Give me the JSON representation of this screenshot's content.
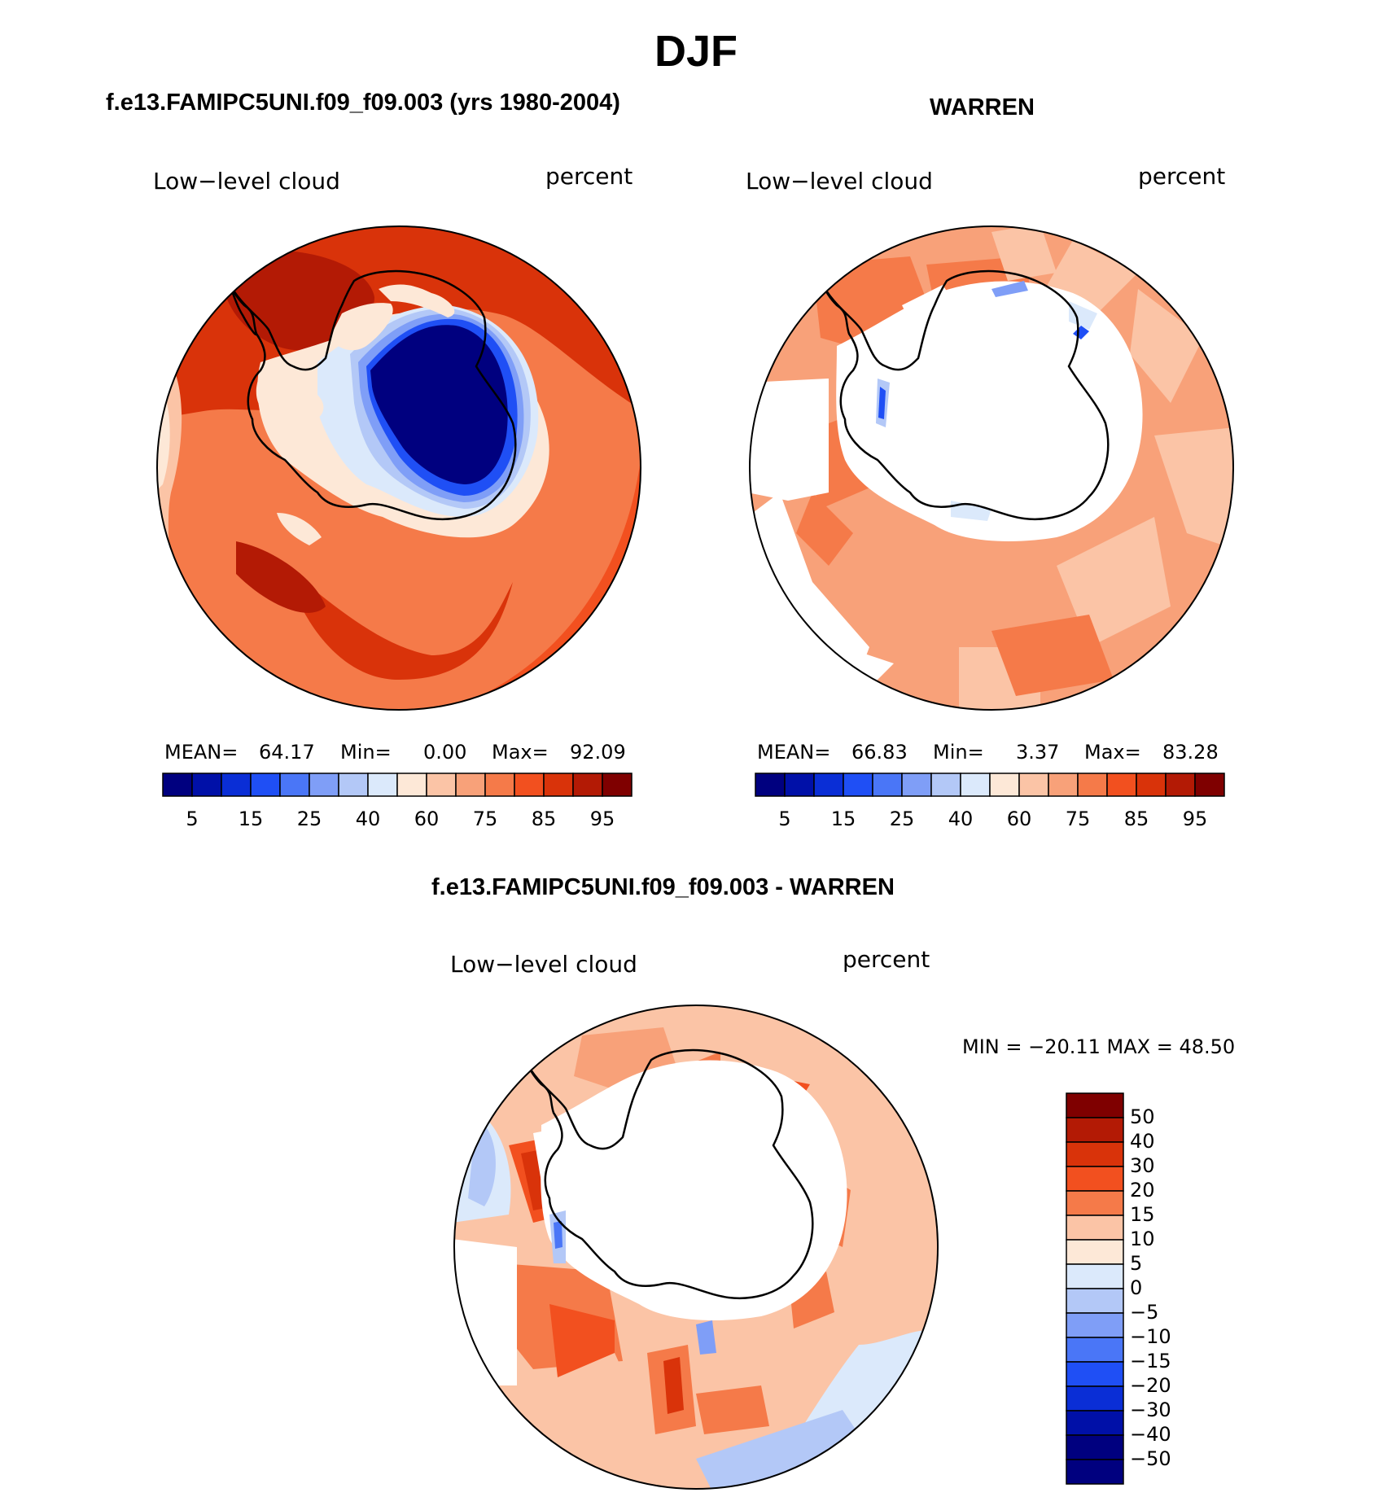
{
  "title": "DJF",
  "panels": [
    {
      "id": "model",
      "title": "f.e13.FAMIPC5UNI.f09_f09.003 (yrs 1980-2004)",
      "left_label": "Low−level cloud",
      "right_label": "percent",
      "stats": {
        "mean_label": "MEAN=",
        "mean": "64.17",
        "min_label": "Min=",
        "min": "0.00",
        "max_label": "Max=",
        "max": "92.09"
      }
    },
    {
      "id": "obs",
      "title": "WARREN",
      "left_label": "Low−level cloud",
      "right_label": "percent",
      "stats": {
        "mean_label": "MEAN=",
        "mean": "66.83",
        "min_label": "Min=",
        "min": "3.37",
        "max_label": "Max=",
        "max": "83.28"
      }
    },
    {
      "id": "diff",
      "title": "f.e13.FAMIPC5UNI.f09_f09.003 - WARREN",
      "left_label": "Low−level cloud",
      "right_label": "percent",
      "stats": {
        "text": "MIN = −20.11 MAX =   48.50"
      }
    }
  ],
  "colorbar_abs": {
    "colors": [
      "#00007f",
      "#0010a8",
      "#0a2ed6",
      "#1f4ff5",
      "#4a76f7",
      "#7f9ef7",
      "#b3c8f7",
      "#dbe9fb",
      "#fde8d7",
      "#fbc4a6",
      "#f8a179",
      "#f57a49",
      "#f2501f",
      "#d9330a",
      "#b31a05",
      "#7f0000"
    ],
    "tick_labels": [
      "5",
      "15",
      "25",
      "40",
      "60",
      "75",
      "85",
      "95"
    ]
  },
  "colorbar_diff": {
    "colors": [
      "#7f0000",
      "#b31a05",
      "#d9330a",
      "#f2501f",
      "#f57a49",
      "#fbc4a6",
      "#fde8d7",
      "#dbe9fb",
      "#b3c8f7",
      "#7f9ef7",
      "#4a76f7",
      "#1f4ff5",
      "#0a2ed6",
      "#0010a8",
      "#00007f"
    ],
    "tick_labels": [
      "50",
      "40",
      "30",
      "20",
      "15",
      "10",
      "5",
      "0",
      "−5",
      "−10",
      "−15",
      "−20",
      "−30",
      "−40",
      "−50"
    ]
  }
}
